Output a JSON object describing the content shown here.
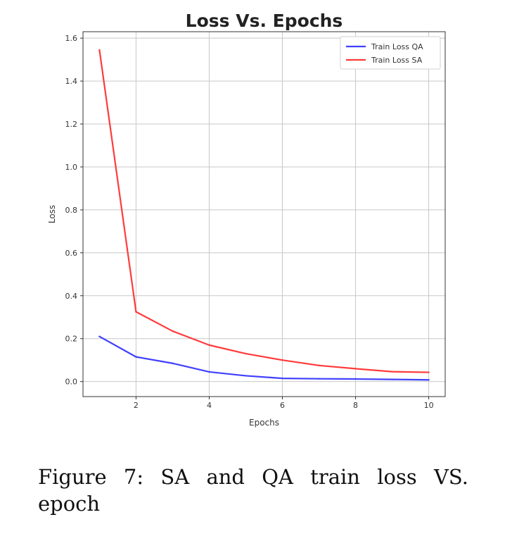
{
  "chart_data": {
    "type": "line",
    "title": "Loss Vs. Epochs",
    "xlabel": "Epochs",
    "ylabel": "Loss",
    "xlim": [
      0.55,
      10.45
    ],
    "ylim": [
      -0.07,
      1.63
    ],
    "xticks": [
      2,
      4,
      6,
      8,
      10
    ],
    "yticks": [
      0.0,
      0.2,
      0.4,
      0.6,
      0.8,
      1.0,
      1.2,
      1.4,
      1.6
    ],
    "grid": true,
    "legend_position": "top-right",
    "x": [
      1,
      2,
      3,
      4,
      5,
      6,
      7,
      8,
      9,
      10
    ],
    "series": [
      {
        "name": "Train Loss QA",
        "color": "#4040ff",
        "values": [
          0.21,
          0.115,
          0.085,
          0.045,
          0.027,
          0.015,
          0.013,
          0.012,
          0.01,
          0.008
        ]
      },
      {
        "name": "Train Loss SA",
        "color": "#ff3b3b",
        "values": [
          1.545,
          0.325,
          0.235,
          0.17,
          0.13,
          0.1,
          0.075,
          0.06,
          0.046,
          0.043
        ]
      }
    ]
  },
  "caption": {
    "words": [
      "Figure",
      "7:",
      "SA",
      "and",
      "QA",
      "train",
      "loss",
      "VS."
    ],
    "line2": "epoch"
  }
}
